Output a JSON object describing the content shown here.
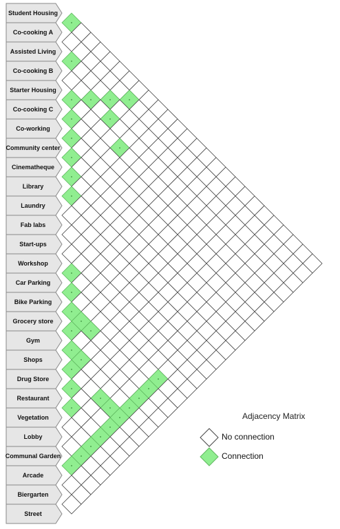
{
  "rows": [
    "Student Housing",
    "Co-cooking A",
    "Assisted Living",
    "Co-cooking B",
    "Starter Housing",
    "Co-cooking C",
    "Co-working",
    "Community center",
    "Cinematheque",
    "Library",
    "Laundry",
    "Fab labs",
    "Start-ups",
    "Workshop",
    "Car Parking",
    "Bike Parking",
    "Grocery store",
    "Gym",
    "Shops",
    "Drug Store",
    "Restaurant",
    "Vegetation",
    "Lobby",
    "Communal Garden",
    "Arcade",
    "Biergarten",
    "Street"
  ],
  "connections": [
    [
      0,
      1
    ],
    [
      2,
      3
    ],
    [
      4,
      5
    ],
    [
      5,
      6
    ],
    [
      6,
      7
    ],
    [
      7,
      8
    ],
    [
      1,
      8
    ],
    [
      8,
      9
    ],
    [
      3,
      8
    ],
    [
      9,
      10
    ],
    [
      2,
      7
    ],
    [
      4,
      10
    ],
    [
      3,
      6
    ],
    [
      17,
      18
    ],
    [
      18,
      19
    ],
    [
      19,
      20
    ],
    [
      20,
      21
    ],
    [
      13,
      14
    ],
    [
      14,
      15
    ],
    [
      15,
      16
    ],
    [
      16,
      17
    ],
    [
      18,
      23
    ],
    [
      18,
      22
    ],
    [
      17,
      19
    ],
    [
      15,
      17
    ],
    [
      15,
      18
    ],
    [
      23,
      24
    ],
    [
      22,
      24
    ],
    [
      21,
      24
    ],
    [
      20,
      24
    ],
    [
      19,
      24
    ],
    [
      18,
      24
    ],
    [
      17,
      24
    ],
    [
      16,
      24
    ],
    [
      15,
      24
    ],
    [
      14,
      24
    ]
  ],
  "legend": {
    "title": "Adjacency Matrix",
    "no_connection": "No connection",
    "connection": "Connection"
  },
  "colors": {
    "connection_fill": "#90ee90",
    "connection_stroke": "#5fb85f",
    "cell_stroke": "#444444",
    "label_fill": "#e6e6e6",
    "label_stroke": "#888888"
  }
}
